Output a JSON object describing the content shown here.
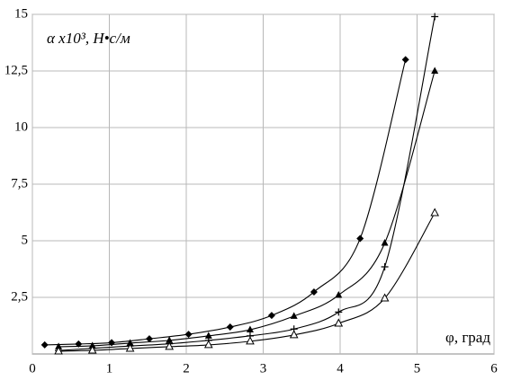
{
  "chart_data": {
    "type": "line",
    "ylabel": "α x10³, Н•с/м",
    "xlabel": "φ, град",
    "xlim": [
      0,
      6
    ],
    "xticks": [
      0,
      1,
      2,
      3,
      4,
      5,
      6
    ],
    "ylim": [
      0,
      15
    ],
    "yticks": [
      {
        "value": 2.5,
        "label": "2,5"
      },
      5,
      {
        "value": 7.5,
        "label": "7,5"
      },
      10,
      {
        "value": 12.5,
        "label": "12,5"
      },
      15
    ],
    "grid": true,
    "series": [
      {
        "color": "#000000",
        "marker": "diamond",
        "x": [
          0.16,
          0.6,
          1.03,
          1.52,
          2.03,
          2.57,
          3.11,
          3.66,
          4.26,
          4.85
        ],
        "values": [
          0.4,
          0.44,
          0.5,
          0.67,
          0.87,
          1.19,
          1.7,
          2.74,
          5.1,
          13.0
        ]
      },
      {
        "color": "#000000",
        "marker": "triangle",
        "x": [
          0.34,
          0.78,
          1.27,
          1.78,
          2.29,
          2.83,
          3.4,
          3.98,
          4.58,
          5.23
        ],
        "values": [
          0.32,
          0.36,
          0.48,
          0.6,
          0.8,
          1.07,
          1.67,
          2.6,
          4.9,
          12.5
        ]
      },
      {
        "color": "#000000",
        "marker": "plus",
        "x": [
          0.34,
          0.78,
          1.27,
          1.78,
          2.29,
          2.83,
          3.4,
          3.98,
          4.58,
          5.23
        ],
        "values": [
          0.15,
          0.25,
          0.35,
          0.45,
          0.6,
          0.8,
          1.1,
          1.85,
          3.85,
          14.9
        ]
      },
      {
        "color": "#000000",
        "marker": "triangle-open",
        "x": [
          0.34,
          0.78,
          1.27,
          1.78,
          2.29,
          2.83,
          3.4,
          3.98,
          4.58,
          5.23
        ],
        "values": [
          0.12,
          0.16,
          0.24,
          0.32,
          0.4,
          0.56,
          0.84,
          1.35,
          2.46,
          6.23
        ]
      }
    ]
  }
}
